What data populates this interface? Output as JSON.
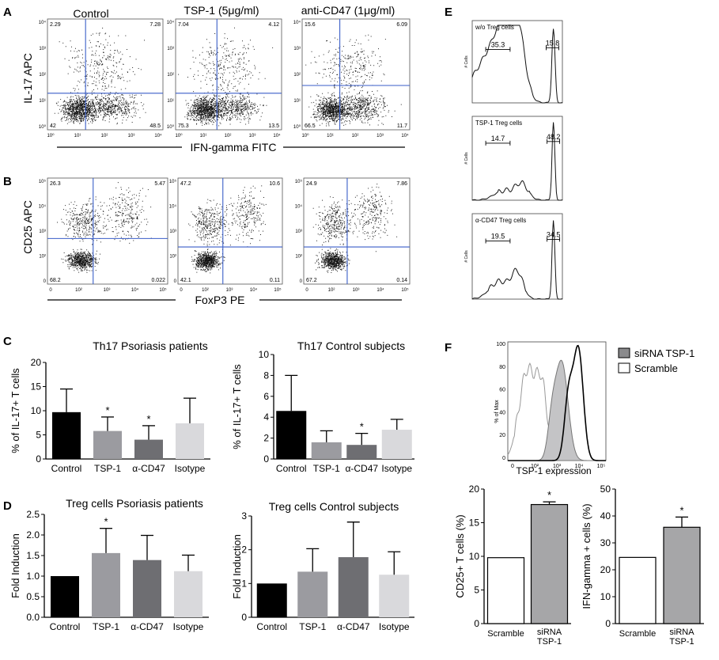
{
  "panels": {
    "A": {
      "letter": "A",
      "col_titles": [
        "Control",
        "TSP-1 (5μg/ml)",
        "anti-CD47 (1μg/ml)"
      ],
      "ylabel": "IL-17 APC",
      "xlabel": "IFN-gamma FITC",
      "plots": [
        {
          "q": [
            "2.29",
            "7.28",
            "42",
            "48.5"
          ]
        },
        {
          "q": [
            "7.04",
            "4.12",
            "75.3",
            "13.5"
          ]
        },
        {
          "q": [
            "15.6",
            "6.09",
            "66.5",
            "11.7"
          ]
        }
      ]
    },
    "B": {
      "letter": "B",
      "ylabel": "CD25 APC",
      "xlabel": "FoxP3 PE",
      "plots": [
        {
          "q": [
            "26.3",
            "5.47",
            "68.2",
            "0.022"
          ]
        },
        {
          "q": [
            "47.2",
            "10.6",
            "42.1",
            "0.11"
          ]
        },
        {
          "q": [
            "24.9",
            "7.86",
            "67.2",
            "0.14"
          ]
        }
      ]
    },
    "C": {
      "letter": "C"
    },
    "D": {
      "letter": "D"
    },
    "E": {
      "letter": "E",
      "ylabel": "# Cells",
      "histos": [
        {
          "label": "w/o Treg cells",
          "gate1": "35.3",
          "gate2": "15.8"
        },
        {
          "label": "TSP-1 Treg cells",
          "gate1": "14.7",
          "gate2": "48.2"
        },
        {
          "label": "α-CD47 Treg cells",
          "gate1": "19.5",
          "gate2": "34.5"
        }
      ]
    },
    "F": {
      "letter": "F",
      "legend": [
        "siRNA TSP-1",
        "Scramble"
      ],
      "hist_xlabel": "TSP-1 expression",
      "hist_ylabel": "% of Max",
      "hist_yticks": [
        "100",
        "80",
        "60",
        "40",
        "20",
        "0"
      ]
    }
  },
  "chart_data": [
    {
      "type": "bar",
      "title": "Th17 Psoriasis patients",
      "ylabel": "% of IL-17+ T cells",
      "categories": [
        "Control",
        "TSP-1",
        "α-CD47",
        "Isotype"
      ],
      "values": [
        9.7,
        5.8,
        4.0,
        7.4
      ],
      "errors": [
        4.8,
        2.9,
        2.9,
        5.2
      ],
      "sig": [
        "",
        "*",
        "*",
        ""
      ],
      "ylim": [
        0,
        20
      ],
      "yticks": [
        "0",
        "5",
        "10",
        "15",
        "20"
      ],
      "colors": [
        "#000000",
        "#9b9ba0",
        "#6e6e72",
        "#d9d9dc"
      ]
    },
    {
      "type": "bar",
      "title": "Th17 Control subjects",
      "ylabel": "% of IL-17+ T cells",
      "categories": [
        "Control",
        "TSP-1",
        "α-CD47",
        "Isotype"
      ],
      "values": [
        4.6,
        1.6,
        1.35,
        2.8
      ],
      "errors": [
        3.4,
        1.1,
        1.1,
        1.0
      ],
      "sig": [
        "",
        "",
        "*",
        ""
      ],
      "ylim": [
        0,
        10
      ],
      "yticks": [
        "0",
        "2",
        "4",
        "6",
        "8",
        "10"
      ],
      "colors": [
        "#000000",
        "#9b9ba0",
        "#6e6e72",
        "#d9d9dc"
      ]
    },
    {
      "type": "bar",
      "title": "Treg cells Psoriasis patients",
      "ylabel": "Fold Induction",
      "categories": [
        "Control",
        "TSP-1",
        "α-CD47",
        "Isotype"
      ],
      "values": [
        1.0,
        1.56,
        1.39,
        1.12
      ],
      "errors": [
        0.0,
        0.6,
        0.6,
        0.39
      ],
      "sig": [
        "",
        "*",
        "",
        ""
      ],
      "ylim": [
        0,
        2.5
      ],
      "yticks": [
        "0.0",
        "0.5",
        "1.0",
        "1.5",
        "2.0",
        "2.5"
      ],
      "colors": [
        "#000000",
        "#9b9ba0",
        "#6e6e72",
        "#d9d9dc"
      ]
    },
    {
      "type": "bar",
      "title": "Treg cells Control subjects",
      "ylabel": "Fold Induction",
      "categories": [
        "Control",
        "TSP-1",
        "α-CD47",
        "Isotype"
      ],
      "values": [
        1.0,
        1.35,
        1.78,
        1.26
      ],
      "errors": [
        0.0,
        0.68,
        1.04,
        0.68
      ],
      "sig": [
        "",
        "",
        "",
        ""
      ],
      "ylim": [
        0,
        3
      ],
      "yticks": [
        "0",
        "1",
        "2",
        "3"
      ],
      "colors": [
        "#000000",
        "#9b9ba0",
        "#6e6e72",
        "#d9d9dc"
      ]
    },
    {
      "type": "bar",
      "title": "",
      "ylabel": "CD25+ T cells (%)",
      "categories": [
        "Scramble",
        "siRNA TSP-1"
      ],
      "values": [
        9.8,
        17.7
      ],
      "errors": [
        0.0,
        0.4
      ],
      "sig": [
        "",
        "*"
      ],
      "ylim": [
        0,
        20
      ],
      "yticks": [
        "0",
        "5",
        "10",
        "15",
        "20"
      ],
      "colors": [
        "#ffffff",
        "#a6a6a8"
      ]
    },
    {
      "type": "bar",
      "title": "",
      "ylabel": "IFN-gamma + cells (%)",
      "categories": [
        "Scramble",
        "siRNA TSP-1"
      ],
      "values": [
        24.6,
        35.8
      ],
      "errors": [
        0.0,
        3.8
      ],
      "sig": [
        "",
        "*"
      ],
      "ylim": [
        0,
        50
      ],
      "yticks": [
        "0",
        "10",
        "20",
        "30",
        "40",
        "50"
      ],
      "colors": [
        "#ffffff",
        "#a6a6a8"
      ]
    }
  ]
}
